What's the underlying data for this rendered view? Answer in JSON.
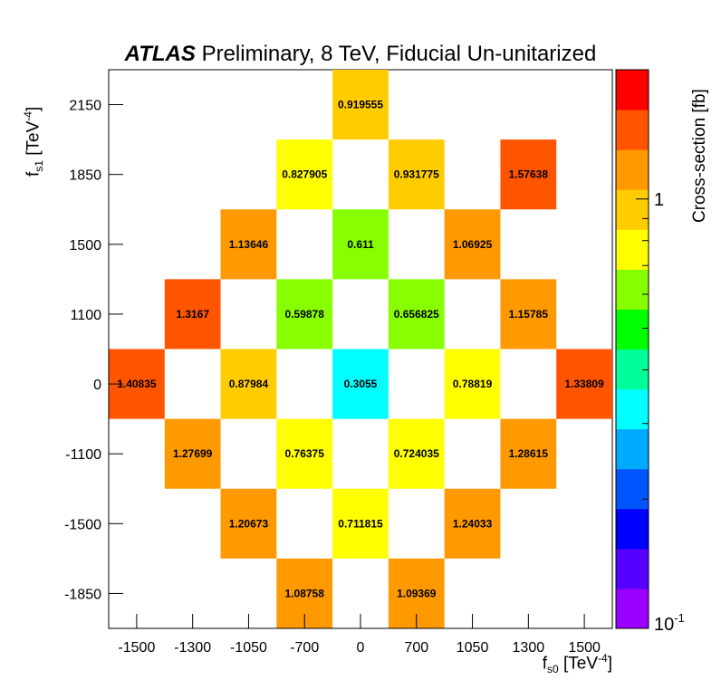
{
  "chart_data": {
    "type": "heatmap",
    "title": {
      "experiment": "ATLAS",
      "rest": "Preliminary, 8 TeV, Fiducial Un-unitarized"
    },
    "xlabel": {
      "main": "f",
      "sub": "s0",
      "unit": "[TeV",
      "exp": "-4",
      "close": "]"
    },
    "ylabel": {
      "main": "f",
      "sub": "s1",
      "unit": "[TeV",
      "exp": "-4",
      "close": "]"
    },
    "x_categories": [
      "-1500",
      "-1300",
      "-1050",
      "-700",
      "0",
      "700",
      "1050",
      "1300",
      "1500"
    ],
    "y_categories": [
      "-1850",
      "-1500",
      "-1100",
      "0",
      "1100",
      "1500",
      "1850",
      "2150"
    ],
    "cells": [
      {
        "x": "0",
        "y": "2150",
        "value": 0.919555,
        "label": "0.919555"
      },
      {
        "x": "-700",
        "y": "1850",
        "value": 0.827905,
        "label": "0.827905"
      },
      {
        "x": "700",
        "y": "1850",
        "value": 0.931775,
        "label": "0.931775"
      },
      {
        "x": "1300",
        "y": "1850",
        "value": 1.57638,
        "label": "1.57638"
      },
      {
        "x": "-1050",
        "y": "1500",
        "value": 1.13646,
        "label": "1.13646"
      },
      {
        "x": "0",
        "y": "1500",
        "value": 0.611,
        "label": "0.611"
      },
      {
        "x": "1050",
        "y": "1500",
        "value": 1.06925,
        "label": "1.06925"
      },
      {
        "x": "-1300",
        "y": "1100",
        "value": 1.3167,
        "label": "1.3167"
      },
      {
        "x": "-700",
        "y": "1100",
        "value": 0.59878,
        "label": "0.59878"
      },
      {
        "x": "700",
        "y": "1100",
        "value": 0.656825,
        "label": "0.656825"
      },
      {
        "x": "1300",
        "y": "1100",
        "value": 1.15785,
        "label": "1.15785"
      },
      {
        "x": "-1500",
        "y": "0",
        "value": 1.40835,
        "label": "1.40835"
      },
      {
        "x": "-1050",
        "y": "0",
        "value": 0.87984,
        "label": "0.87984"
      },
      {
        "x": "0",
        "y": "0",
        "value": 0.3055,
        "label": "0.3055"
      },
      {
        "x": "1050",
        "y": "0",
        "value": 0.78819,
        "label": "0.78819"
      },
      {
        "x": "1500",
        "y": "0",
        "value": 1.33809,
        "label": "1.33809"
      },
      {
        "x": "-1300",
        "y": "-1100",
        "value": 1.27699,
        "label": "1.27699"
      },
      {
        "x": "-700",
        "y": "-1100",
        "value": 0.76375,
        "label": "0.76375"
      },
      {
        "x": "700",
        "y": "-1100",
        "value": 0.724035,
        "label": "0.724035"
      },
      {
        "x": "1300",
        "y": "-1100",
        "value": 1.28615,
        "label": "1.28615"
      },
      {
        "x": "-1050",
        "y": "-1500",
        "value": 1.20673,
        "label": "1.20673"
      },
      {
        "x": "0",
        "y": "-1500",
        "value": 0.711815,
        "label": "0.711815"
      },
      {
        "x": "1050",
        "y": "-1500",
        "value": 1.24033,
        "label": "1.24033"
      },
      {
        "x": "-700",
        "y": "-1850",
        "value": 1.08758,
        "label": "1.08758"
      },
      {
        "x": "700",
        "y": "-1850",
        "value": 1.09369,
        "label": "1.09369"
      }
    ],
    "colorbar": {
      "label": "Cross-section [fb]",
      "scale": "log",
      "min": 0.1,
      "max": 2.0,
      "tick_labels": [
        {
          "value": 1,
          "text": "1"
        },
        {
          "value": 0.1,
          "text": "10",
          "exp": "-1"
        }
      ],
      "palette": [
        "#9900ff",
        "#5500ff",
        "#0000ff",
        "#0055ff",
        "#00aaff",
        "#00ffff",
        "#00ff99",
        "#00ff00",
        "#88ff00",
        "#ffff00",
        "#ffcc00",
        "#ff9900",
        "#ff5500",
        "#ff0000"
      ]
    }
  }
}
